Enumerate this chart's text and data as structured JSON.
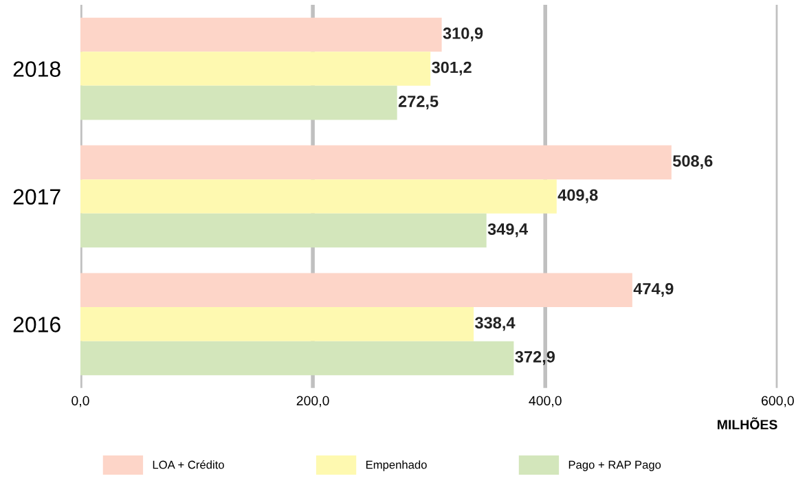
{
  "chart_data": {
    "type": "bar",
    "orientation": "horizontal",
    "categories": [
      "2018",
      "2017",
      "2016"
    ],
    "series": [
      {
        "name": "LOA + Crédito",
        "color": "#fdd5c8",
        "values": [
          310.9,
          508.6,
          474.9
        ],
        "value_labels": [
          "310,9",
          "508,6",
          "474,9"
        ]
      },
      {
        "name": "Empenhado",
        "color": "#fef9b0",
        "values": [
          301.2,
          409.8,
          338.4
        ],
        "value_labels": [
          "301,2",
          "409,8",
          "338,4"
        ]
      },
      {
        "name": "Pago + RAP Pago",
        "color": "#d3e6bb",
        "values": [
          272.5,
          349.4,
          372.9
        ],
        "value_labels": [
          "272,5",
          "349,4",
          "372,9"
        ]
      }
    ],
    "xlabel": "MILHÕES",
    "xlim": [
      0,
      600
    ],
    "xticks": [
      {
        "value": 0,
        "label": "0,0"
      },
      {
        "value": 200,
        "label": "200,0"
      },
      {
        "value": 400,
        "label": "400,0"
      },
      {
        "value": 600,
        "label": "600,0"
      }
    ],
    "grid": "x",
    "legend": "bottom"
  }
}
